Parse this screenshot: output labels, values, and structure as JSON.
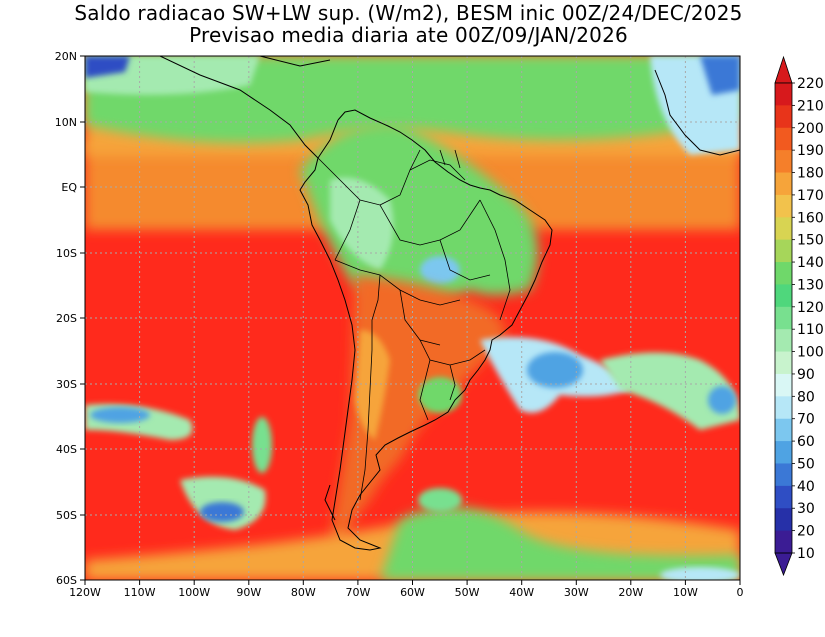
{
  "title_line1": "Saldo radiacao SW+LW sup. (W/m2), BESM inic 00Z/24/DEC/2025",
  "title_line2": "Previsao media diaria ate 00Z/09/JAN/2026",
  "lat_labels": [
    "20N",
    "10N",
    "EQ",
    "10S",
    "20S",
    "30S",
    "40S",
    "50S",
    "60S"
  ],
  "lon_labels": [
    "120W",
    "110W",
    "100W",
    "90W",
    "80W",
    "70W",
    "60W",
    "50W",
    "40W",
    "30W",
    "20W",
    "10W",
    "0"
  ],
  "colorbar": {
    "labels": [
      "220",
      "210",
      "200",
      "190",
      "180",
      "170",
      "160",
      "150",
      "140",
      "130",
      "120",
      "110",
      "100",
      "90",
      "80",
      "70",
      "60",
      "50",
      "40",
      "30",
      "20",
      "10"
    ],
    "colors": [
      "#d7191c",
      "#e8341a",
      "#f25a1f",
      "#f57f2a",
      "#f6a43a",
      "#f2c24c",
      "#d8d452",
      "#a6d65a",
      "#6fd86a",
      "#4fd77c",
      "#78e08f",
      "#a4eab0",
      "#c8f3cd",
      "#d9f7f5",
      "#b6e7f7",
      "#7cc7ef",
      "#4fa3e3",
      "#3b78d6",
      "#2f4ec4",
      "#2630a8",
      "#3b1c94"
    ]
  },
  "map": {
    "ocean_color": "#ff2a1c",
    "region_colors": {
      "tropics_band": "#f58a2e",
      "north_green": "#6fd86a",
      "continent_orange": "#f26a25",
      "blue_patch": "#4fa3e3"
    }
  }
}
